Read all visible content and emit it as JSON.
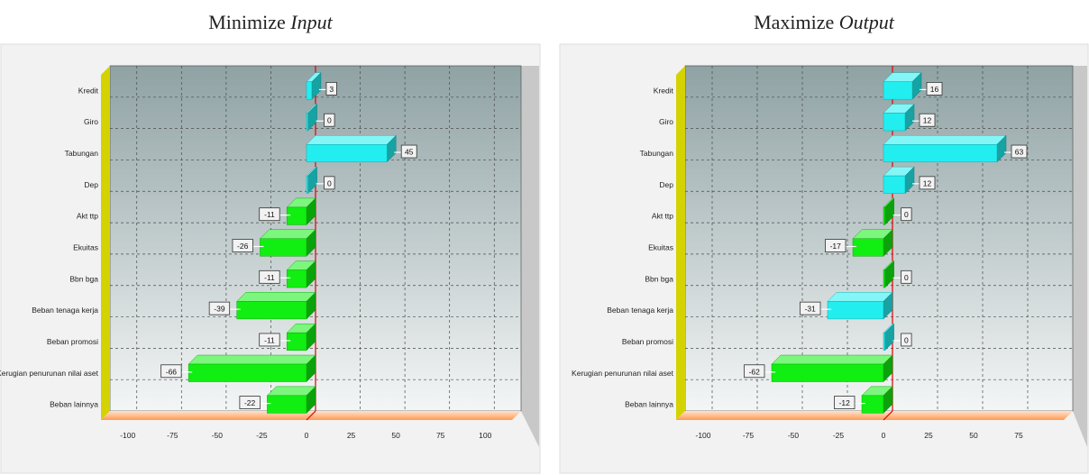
{
  "chart_data": [
    {
      "type": "bar",
      "orientation": "horizontal",
      "title_prefix": "Minimize ",
      "title_emphasis": "Input",
      "categories": [
        "Kredit",
        "Giro",
        "Tabungan",
        "Dep",
        "Akt ttp",
        "Ekuitas",
        "Bbn bga",
        "Beban tenaga kerja",
        "Beban promosi",
        "Kerugian penurunan nilai aset",
        "Beban lainnya"
      ],
      "values": [
        3,
        0,
        45,
        0,
        -11,
        -26,
        -11,
        -39,
        -11,
        -66,
        -22
      ],
      "data_labels": [
        "3",
        "0",
        "45",
        "0",
        "-11",
        "-26",
        "-11",
        "-39",
        "-11",
        "-66",
        "-22"
      ],
      "bar_colors": [
        "#22eef0",
        "#22eef0",
        "#22eef0",
        "#22eef0",
        "#11ee11",
        "#11ee11",
        "#11ee11",
        "#11ee11",
        "#11ee11",
        "#11ee11",
        "#11ee11"
      ],
      "xlim": [
        -115,
        115
      ],
      "xticks": [
        -100,
        -75,
        -50,
        -25,
        0,
        25,
        50,
        75,
        100
      ],
      "xtick_labels": [
        "-100",
        "-75",
        "-50",
        "-25",
        "0",
        "25",
        "50",
        "75",
        "100"
      ],
      "grid": true
    },
    {
      "type": "bar",
      "orientation": "horizontal",
      "title_prefix": "Maximize ",
      "title_emphasis": "Output",
      "categories": [
        "Kredit",
        "Giro",
        "Tabungan",
        "Dep",
        "Akt ttp",
        "Ekuitas",
        "Bbn bga",
        "Beban tenaga kerja",
        "Beban promosi",
        "Kerugian penurunan nilai aset",
        "Beban lainnya"
      ],
      "values": [
        16,
        12,
        63,
        12,
        0,
        -17,
        0,
        -31,
        0,
        -62,
        -12
      ],
      "data_labels": [
        "16",
        "12",
        "63",
        "12",
        "0",
        "-17",
        "0",
        "-31",
        "0",
        "-62",
        "-12"
      ],
      "bar_colors": [
        "#22eef0",
        "#22eef0",
        "#22eef0",
        "#22eef0",
        "#11ee11",
        "#11ee11",
        "#11ee11",
        "#22eef0",
        "#22eef0",
        "#11ee11",
        "#11ee11"
      ],
      "xlim": [
        -115,
        100
      ],
      "xticks": [
        -100,
        -75,
        -50,
        -25,
        0,
        25,
        50,
        75
      ],
      "xtick_labels": [
        "-100",
        "-75",
        "-50",
        "-25",
        "0",
        "25",
        "50",
        "75"
      ],
      "grid": true
    }
  ]
}
